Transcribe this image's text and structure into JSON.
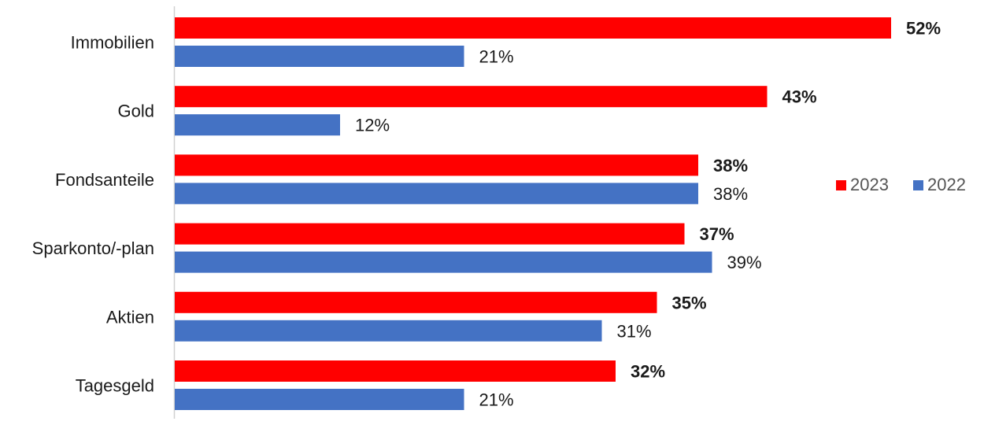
{
  "chart_data": {
    "type": "bar",
    "orientation": "horizontal",
    "categories": [
      "Immobilien",
      "Gold",
      "Fondsanteile",
      "Sparkonto/-plan",
      "Aktien",
      "Tagesgeld"
    ],
    "series": [
      {
        "name": "2023",
        "color": "#ff0000",
        "values": [
          52,
          43,
          38,
          37,
          35,
          32
        ],
        "labels": [
          "52%",
          "43%",
          "38%",
          "37%",
          "35%",
          "32%"
        ],
        "label_bold": true
      },
      {
        "name": "2022",
        "color": "#4472c4",
        "values": [
          21,
          12,
          38,
          39,
          31,
          21
        ],
        "labels": [
          "21%",
          "12%",
          "38%",
          "39%",
          "31%",
          "21%"
        ],
        "label_bold": false
      }
    ],
    "xlim": [
      0,
      52
    ],
    "grid": false,
    "legend_position": "right"
  }
}
